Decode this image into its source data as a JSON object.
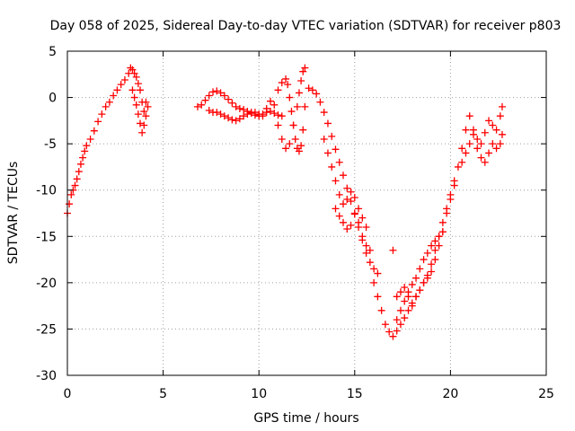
{
  "chart_data": {
    "type": "scatter",
    "title": "Day 058 of 2025, Sidereal Day-to-day VTEC variation (SDTVAR) for receiver p803",
    "xlabel": "GPS time / hours",
    "ylabel": "SDTVAR / TECUs",
    "xlim": [
      0,
      25
    ],
    "ylim": [
      -30,
      5
    ],
    "xticks": [
      "0",
      "5",
      "10",
      "15",
      "20",
      "25"
    ],
    "yticks": [
      "5",
      "0",
      "-5",
      "-10",
      "-15",
      "-20",
      "-25",
      "-30"
    ],
    "grid": true,
    "marker": "plus",
    "color": "#ff0000",
    "series": [
      {
        "x": [
          0.0,
          0.1,
          0.2,
          0.3,
          0.4,
          0.5,
          0.6,
          0.7,
          0.8,
          0.9,
          1.0,
          1.2,
          1.4,
          1.6,
          1.8,
          2.0,
          2.2,
          2.4,
          2.6,
          2.8,
          3.0,
          3.2,
          3.3,
          3.4,
          3.5,
          3.6,
          3.7,
          3.8,
          3.9,
          4.0,
          4.1,
          4.2
        ],
        "y": [
          -12.5,
          -11.5,
          -10.5,
          -10.0,
          -9.5,
          -8.8,
          -8.0,
          -7.2,
          -6.5,
          -5.8,
          -5.2,
          -4.5,
          -3.6,
          -2.6,
          -1.8,
          -1.0,
          -0.5,
          0.2,
          0.8,
          1.4,
          1.9,
          2.6,
          3.2,
          3.0,
          2.6,
          2.2,
          1.5,
          0.8,
          -0.5,
          -1.5,
          -0.5,
          -1.0
        ]
      },
      {
        "x": [
          3.4,
          3.5,
          3.6,
          3.7,
          3.8,
          3.9,
          4.0,
          4.1
        ],
        "y": [
          0.8,
          0.0,
          -0.8,
          -1.8,
          -2.8,
          -3.8,
          -3.0,
          -2.0
        ]
      },
      {
        "x": [
          6.8,
          7.0,
          7.2,
          7.4,
          7.6,
          7.8,
          8.0,
          8.2,
          8.4,
          8.6,
          8.8,
          9.0,
          9.2,
          9.4,
          9.6,
          9.8,
          10.0,
          10.2,
          10.4,
          10.6,
          10.8,
          11.0,
          11.2
        ],
        "y": [
          -1.0,
          -0.8,
          -0.3,
          0.2,
          0.6,
          0.7,
          0.5,
          0.2,
          -0.2,
          -0.6,
          -1.0,
          -1.2,
          -1.3,
          -1.5,
          -1.7,
          -1.9,
          -2.0,
          -1.8,
          -1.6,
          -1.5,
          -1.7,
          -1.9,
          -2.0
        ]
      },
      {
        "x": [
          7.4,
          7.6,
          7.8,
          8.0,
          8.2,
          8.4,
          8.6,
          8.8,
          9.0,
          9.2,
          9.4,
          9.6,
          9.8,
          10.0,
          10.2,
          10.4,
          10.6
        ],
        "y": [
          -1.4,
          -1.6,
          -1.6,
          -1.8,
          -2.0,
          -2.2,
          -2.4,
          -2.5,
          -2.3,
          -2.0,
          -1.8,
          -1.6,
          -1.6,
          -1.8,
          -2.0,
          -1.2,
          -0.4
        ]
      },
      {
        "x": [
          10.8,
          11.0,
          11.2,
          11.4,
          11.5,
          11.6,
          11.7,
          11.8,
          11.9,
          12.0,
          12.1,
          12.2,
          12.3,
          12.4
        ],
        "y": [
          -0.8,
          0.8,
          1.6,
          2.0,
          1.4,
          0.0,
          -1.5,
          -3.0,
          -4.5,
          -5.5,
          -5.8,
          -5.2,
          -3.5,
          -1.0
        ]
      },
      {
        "x": [
          11.0,
          11.2,
          11.4,
          11.6,
          11.8,
          12.0,
          12.1,
          12.2,
          12.3,
          12.4
        ],
        "y": [
          -3.0,
          -4.5,
          -5.5,
          -5.0,
          -3.0,
          -1.0,
          0.5,
          1.8,
          2.8,
          3.2
        ]
      },
      {
        "x": [
          12.6,
          12.8,
          13.0,
          13.2,
          13.4,
          13.6,
          13.8,
          14.0,
          14.2,
          14.4,
          14.6,
          14.8,
          15.0,
          15.2,
          15.4,
          15.6,
          15.8,
          16.0,
          16.2
        ],
        "y": [
          1.0,
          0.8,
          0.4,
          -0.5,
          -1.6,
          -2.8,
          -4.2,
          -5.6,
          -7.0,
          -8.4,
          -9.8,
          -11.2,
          -12.6,
          -14.0,
          -15.4,
          -16.8,
          -17.8,
          -18.5,
          -19.0
        ]
      },
      {
        "x": [
          13.4,
          13.6,
          13.8,
          14.0,
          14.2,
          14.4,
          14.6,
          14.8,
          15.0,
          15.2,
          15.4,
          15.6
        ],
        "y": [
          -4.5,
          -6.0,
          -7.5,
          -9.0,
          -10.5,
          -11.5,
          -11.0,
          -10.2,
          -10.8,
          -12.0,
          -13.0,
          -14.0
        ]
      },
      {
        "x": [
          14.0,
          14.2,
          14.4,
          14.6,
          14.8,
          15.0,
          15.2,
          15.4,
          15.6,
          15.8
        ],
        "y": [
          -12.0,
          -12.8,
          -13.5,
          -14.2,
          -13.8,
          -12.5,
          -13.5,
          -15.0,
          -16.0,
          -16.5
        ]
      },
      {
        "x": [
          16.0,
          16.2,
          16.4,
          16.6,
          16.8,
          17.0,
          17.2,
          17.4,
          17.6,
          17.8,
          18.0,
          18.2,
          18.4,
          18.6,
          18.8,
          19.0,
          19.2,
          19.4,
          19.6,
          19.8,
          20.0,
          20.2
        ],
        "y": [
          -20.0,
          -21.5,
          -23.0,
          -24.5,
          -25.3,
          -25.8,
          -25.2,
          -24.5,
          -23.8,
          -23.0,
          -22.2,
          -21.5,
          -20.8,
          -20.0,
          -19.2,
          -18.0,
          -16.5,
          -15.0,
          -13.5,
          -12.0,
          -10.5,
          -9.0
        ]
      },
      {
        "x": [
          17.2,
          17.4,
          17.6,
          17.8,
          18.0,
          18.2,
          18.4,
          18.6,
          18.8,
          19.0,
          19.2,
          19.4,
          19.6,
          19.8,
          20.0,
          20.2
        ],
        "y": [
          -21.5,
          -21.0,
          -20.5,
          -21.5,
          -22.5,
          -21.5,
          -20.8,
          -20.0,
          -19.5,
          -18.8,
          -17.5,
          -16.0,
          -14.5,
          -12.5,
          -11.0,
          -9.5
        ]
      },
      {
        "x": [
          17.0,
          17.2,
          17.4,
          17.6,
          17.8,
          18.0,
          18.2,
          18.4,
          18.6,
          18.8,
          19.0,
          19.2,
          19.4,
          19.6
        ],
        "y": [
          -16.5,
          -24.0,
          -23.0,
          -22.0,
          -21.0,
          -20.2,
          -19.5,
          -18.5,
          -17.5,
          -16.8,
          -16.0,
          -15.5,
          -15.0,
          -14.5
        ]
      },
      {
        "x": [
          20.4,
          20.6,
          20.8,
          21.0,
          21.2,
          21.4,
          21.6,
          21.8,
          22.0,
          22.2,
          22.4,
          22.6,
          22.7
        ],
        "y": [
          -7.5,
          -5.5,
          -3.5,
          -2.0,
          -3.5,
          -4.5,
          -5.0,
          -3.8,
          -2.5,
          -3.0,
          -3.5,
          -2.0,
          -1.0
        ]
      },
      {
        "x": [
          20.6,
          20.8,
          21.0,
          21.2,
          21.4,
          21.6,
          21.8,
          22.0,
          22.2,
          22.4,
          22.6,
          22.7
        ],
        "y": [
          -7.0,
          -6.0,
          -5.0,
          -4.0,
          -5.5,
          -6.5,
          -7.0,
          -6.0,
          -5.0,
          -5.5,
          -5.0,
          -4.0
        ]
      }
    ]
  }
}
